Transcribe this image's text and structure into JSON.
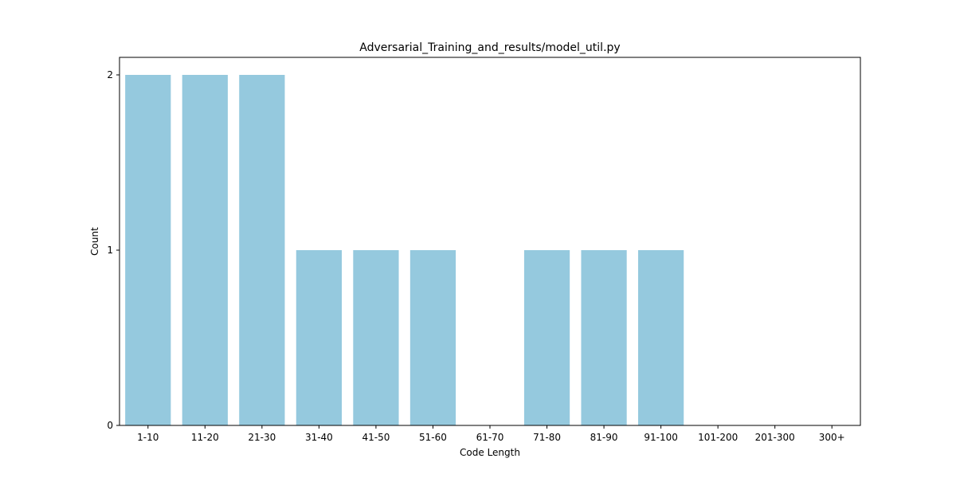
{
  "chart_data": {
    "type": "bar",
    "title": "Adversarial_Training_and_results/model_util.py",
    "xlabel": "Code Length",
    "ylabel": "Count",
    "categories": [
      "1-10",
      "11-20",
      "21-30",
      "31-40",
      "41-50",
      "51-60",
      "61-70",
      "71-80",
      "81-90",
      "91-100",
      "101-200",
      "201-300",
      "300+"
    ],
    "values": [
      2,
      2,
      2,
      1,
      1,
      1,
      0,
      1,
      1,
      1,
      0,
      0,
      0
    ],
    "ylim": [
      0,
      2.1
    ],
    "yticks": [
      0,
      1,
      2
    ],
    "bar_color": "#95c9de",
    "grid": false,
    "legend": "none"
  }
}
